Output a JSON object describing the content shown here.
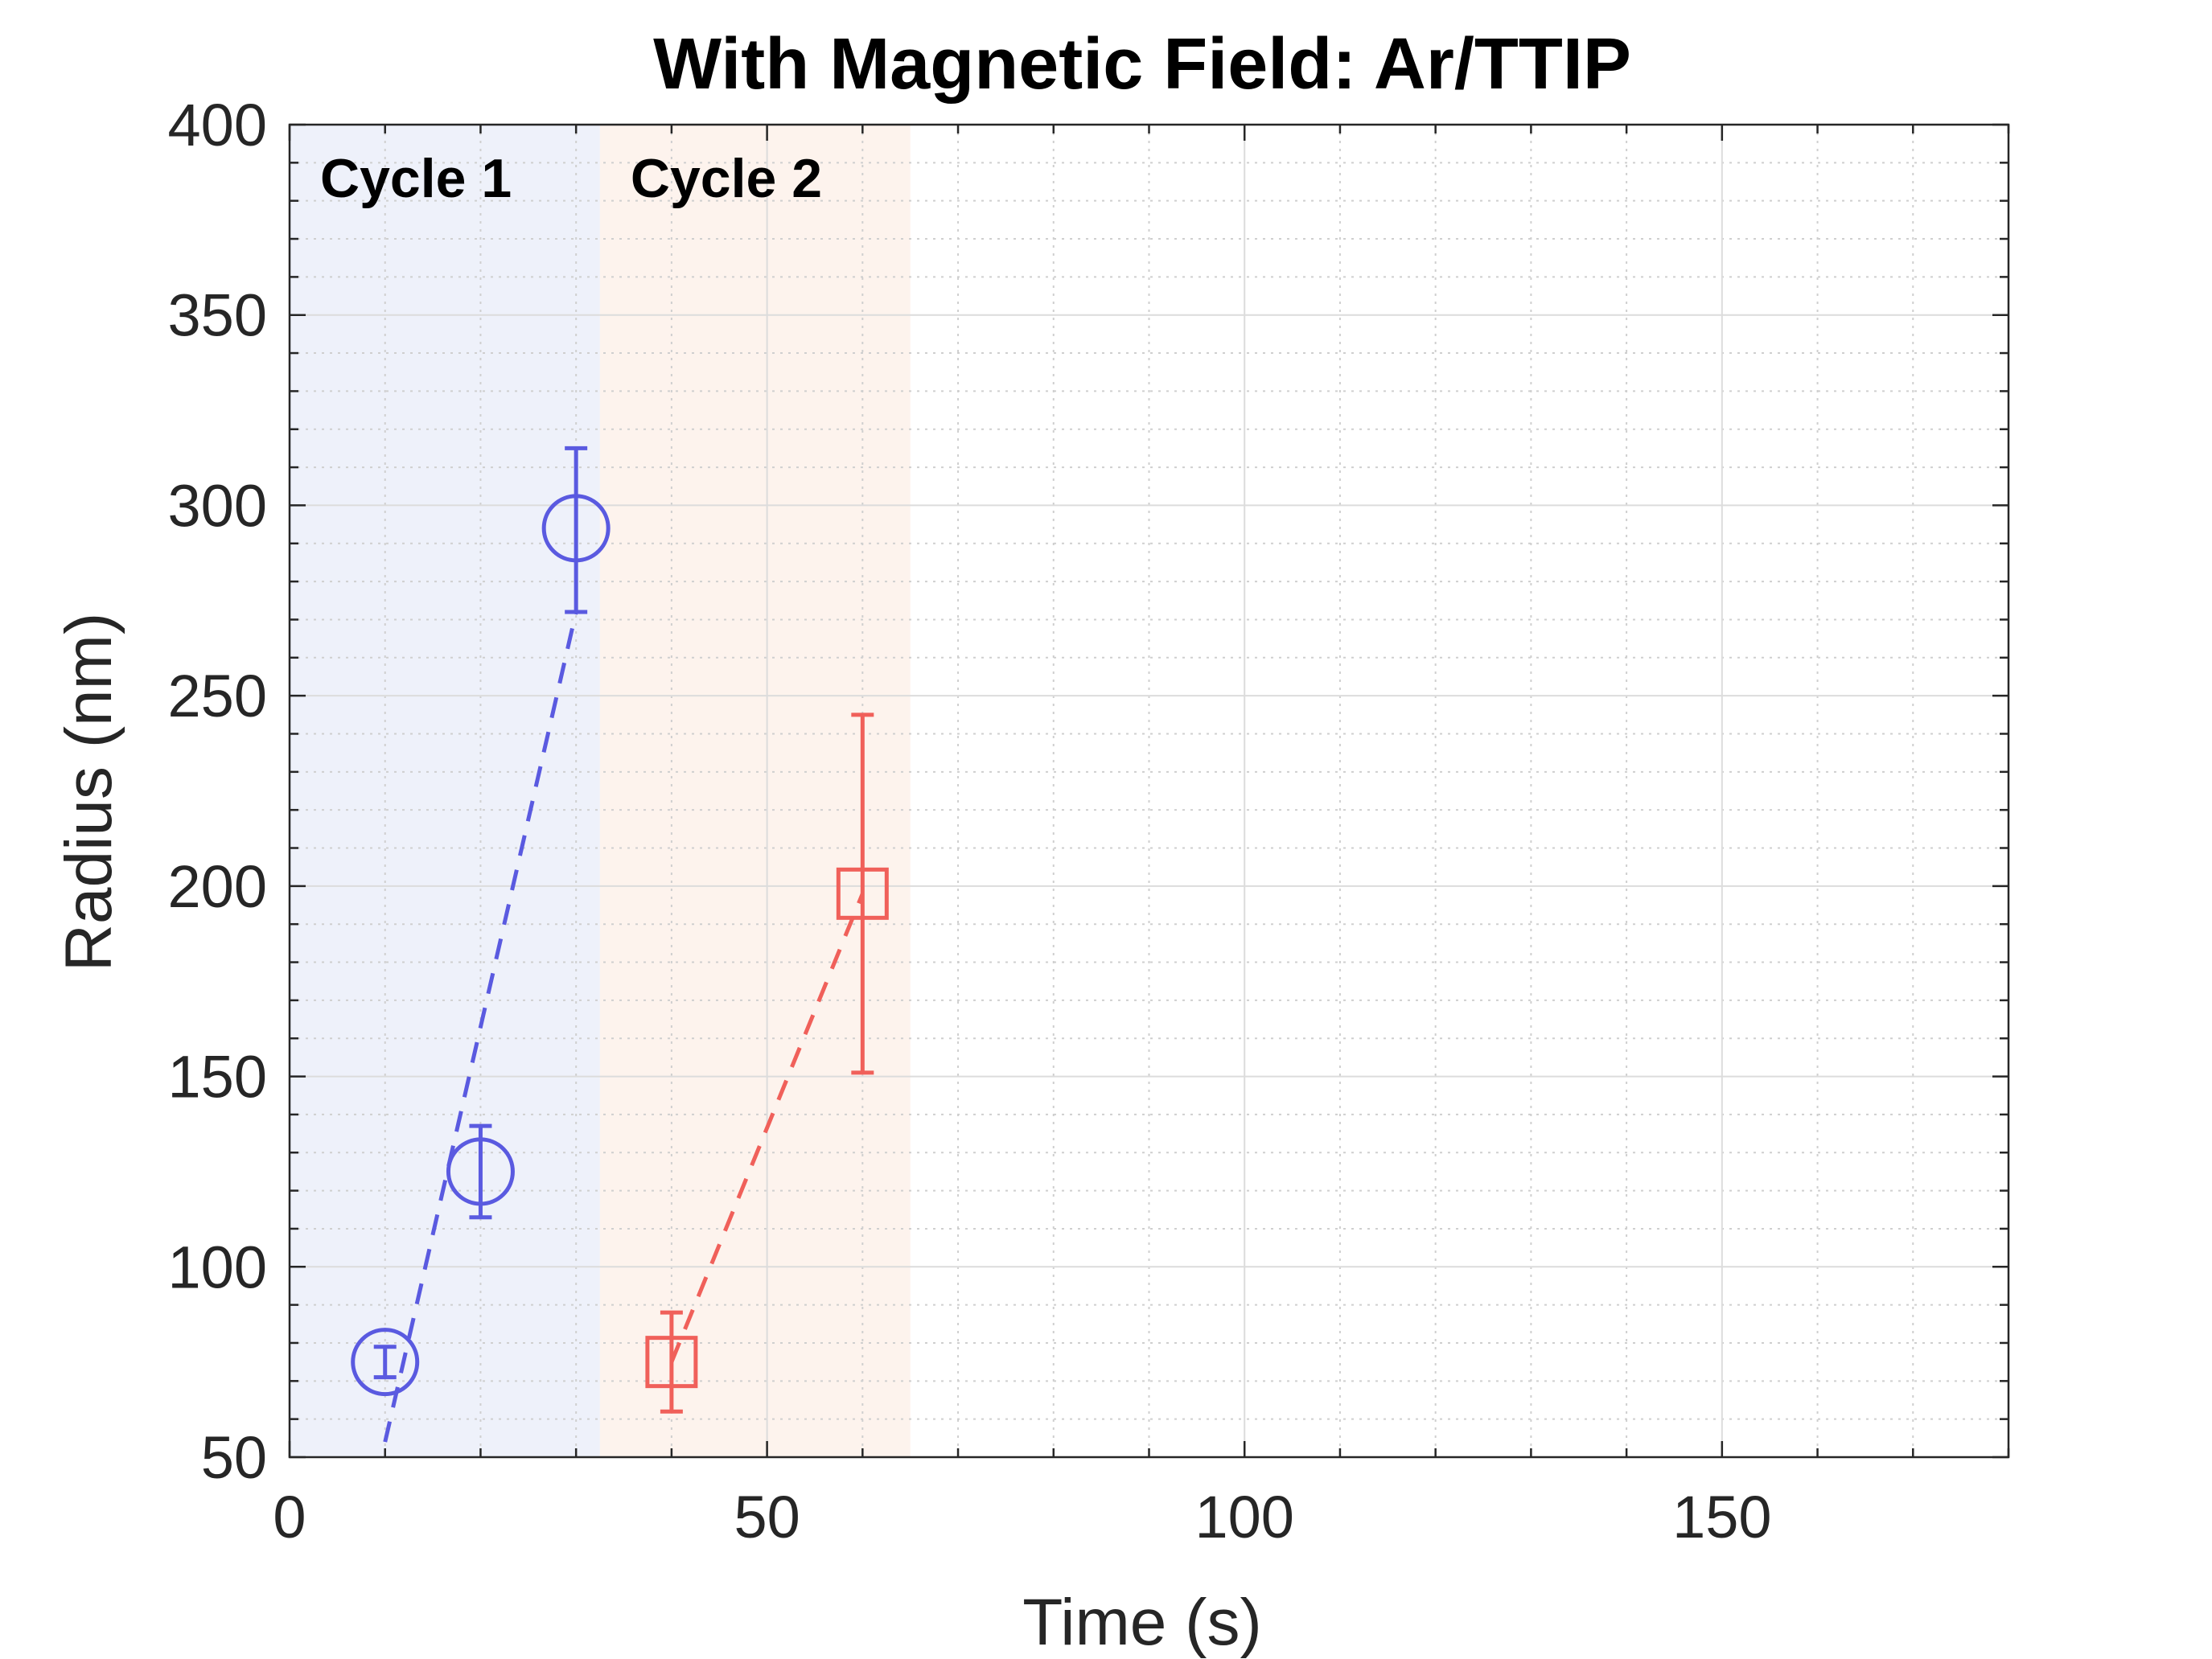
{
  "chart_data": {
    "type": "scatter",
    "title": "With Magnetic Field: Ar/TTIP",
    "xlabel": "Time (s)",
    "ylabel": "Radius (nm)",
    "xlim": [
      0,
      180
    ],
    "ylim": [
      50,
      400
    ],
    "xticks": [
      0,
      50,
      100,
      150
    ],
    "yticks": [
      50,
      100,
      150,
      200,
      250,
      300,
      350,
      400
    ],
    "grid": true,
    "bands": [
      {
        "label": "Cycle 1",
        "x_start": 0,
        "x_end": 32.5,
        "color": "#eef1fa"
      },
      {
        "label": "Cycle 2",
        "x_start": 32.5,
        "x_end": 65,
        "color": "#fdf3ed"
      }
    ],
    "series": [
      {
        "name": "Cycle 1",
        "marker": "circle",
        "color": "#5a5ae0",
        "x": [
          10,
          20,
          30
        ],
        "y": [
          75,
          125,
          294
        ],
        "err_low": [
          71,
          113,
          272
        ],
        "err_high": [
          79,
          137,
          315
        ],
        "fit_line": {
          "x": [
            10,
            30
          ],
          "y": [
            54,
            272
          ]
        }
      },
      {
        "name": "Cycle 2",
        "marker": "square",
        "color": "#f0605a",
        "x": [
          40,
          60
        ],
        "y": [
          75,
          198
        ],
        "err_low": [
          62,
          151
        ],
        "err_high": [
          88,
          245
        ],
        "fit_line": {
          "x": [
            40,
            60
          ],
          "y": [
            75,
            198
          ]
        }
      }
    ]
  }
}
